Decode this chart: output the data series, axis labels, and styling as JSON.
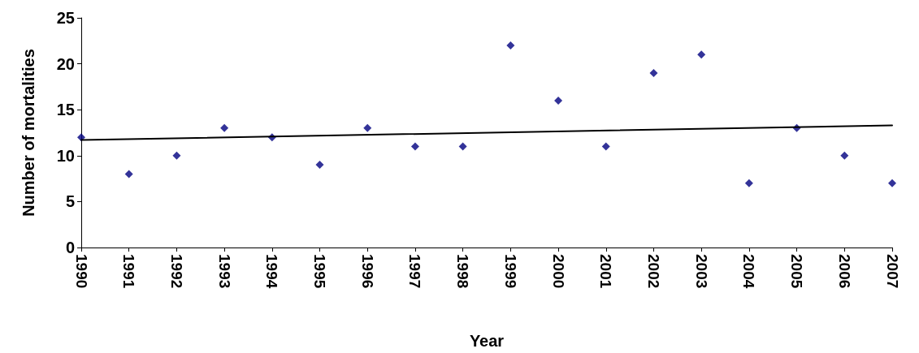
{
  "chart_data": {
    "type": "scatter",
    "xlabel": "Year",
    "ylabel": "Number of mortalities",
    "x": [
      1990,
      1991,
      1992,
      1993,
      1994,
      1995,
      1996,
      1997,
      1998,
      1999,
      2000,
      2001,
      2002,
      2003,
      2004,
      2005,
      2006,
      2007
    ],
    "series": [
      {
        "type": "scatter",
        "color": "#000080",
        "marker": "diamond",
        "values": [
          12,
          8,
          10,
          13,
          12,
          9,
          13,
          11,
          11,
          22,
          16,
          11,
          19,
          21,
          7,
          13,
          10,
          7
        ]
      },
      {
        "type": "line",
        "color": "#000000",
        "line_style": "solid",
        "marker": "none",
        "x": [
          1990,
          2007
        ],
        "values": [
          11.7,
          13.3
        ]
      }
    ],
    "xlim": [
      1990,
      2007
    ],
    "xticks": [
      1990,
      1991,
      1992,
      1993,
      1994,
      1995,
      1996,
      1997,
      1998,
      1999,
      2000,
      2001,
      2002,
      2003,
      2004,
      2005,
      2006,
      2007
    ],
    "ylim": [
      0,
      25
    ],
    "yticks": [
      0,
      5,
      10,
      15,
      20,
      25
    ],
    "grid": false
  }
}
